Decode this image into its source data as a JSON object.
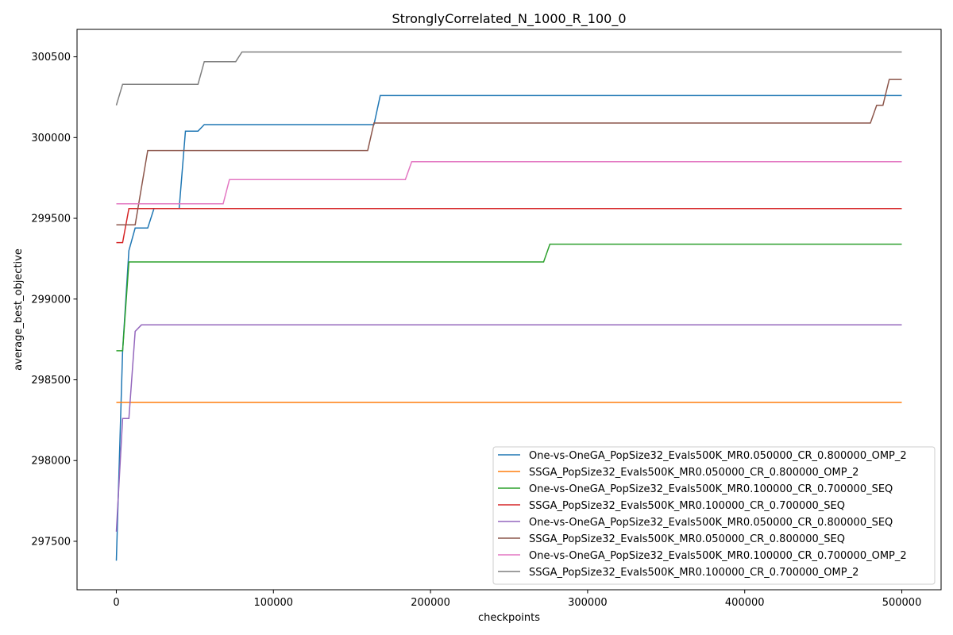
{
  "chart_data": {
    "type": "line",
    "title": "StronglyCorrelated_N_1000_R_100_0",
    "xlabel": "checkpoints",
    "ylabel": "average_best_objective",
    "xlim": [
      -25000,
      525000
    ],
    "ylim": [
      297200,
      300670
    ],
    "xticks": [
      0,
      100000,
      200000,
      300000,
      400000,
      500000
    ],
    "yticks": [
      297500,
      298000,
      298500,
      299000,
      299500,
      300000,
      300500
    ],
    "grid": false,
    "legend_position": "lower-right",
    "series": [
      {
        "name": "One-vs-OneGA_PopSize32_Evals500K_MR0.050000_CR_0.800000_OMP_2",
        "color": "#1f77b4",
        "points": [
          [
            0,
            297380
          ],
          [
            4000,
            298680
          ],
          [
            8000,
            299300
          ],
          [
            12000,
            299440
          ],
          [
            20000,
            299440
          ],
          [
            24000,
            299560
          ],
          [
            40000,
            299560
          ],
          [
            44000,
            300040
          ],
          [
            52000,
            300040
          ],
          [
            56000,
            300080
          ],
          [
            164000,
            300080
          ],
          [
            168000,
            300260
          ],
          [
            500000,
            300260
          ]
        ]
      },
      {
        "name": "SSGA_PopSize32_Evals500K_MR0.050000_CR_0.800000_OMP_2",
        "color": "#ff7f0e",
        "points": [
          [
            0,
            298360
          ],
          [
            500000,
            298360
          ]
        ]
      },
      {
        "name": "One-vs-OneGA_PopSize32_Evals500K_MR0.100000_CR_0.700000_SEQ",
        "color": "#2ca02c",
        "points": [
          [
            0,
            298680
          ],
          [
            4000,
            298680
          ],
          [
            8000,
            299230
          ],
          [
            272000,
            299230
          ],
          [
            276000,
            299340
          ],
          [
            500000,
            299340
          ]
        ]
      },
      {
        "name": "SSGA_PopSize32_Evals500K_MR0.100000_CR_0.700000_SEQ",
        "color": "#d62728",
        "points": [
          [
            0,
            299350
          ],
          [
            4000,
            299350
          ],
          [
            8000,
            299560
          ],
          [
            500000,
            299560
          ]
        ]
      },
      {
        "name": "One-vs-OneGA_PopSize32_Evals500K_MR0.050000_CR_0.800000_SEQ",
        "color": "#9467bd",
        "points": [
          [
            0,
            297560
          ],
          [
            4000,
            298260
          ],
          [
            8000,
            298260
          ],
          [
            12000,
            298800
          ],
          [
            16000,
            298840
          ],
          [
            500000,
            298840
          ]
        ]
      },
      {
        "name": "SSGA_PopSize32_Evals500K_MR0.050000_CR_0.800000_SEQ",
        "color": "#8c564b",
        "points": [
          [
            0,
            299460
          ],
          [
            12000,
            299460
          ],
          [
            20000,
            299920
          ],
          [
            160000,
            299920
          ],
          [
            164000,
            300090
          ],
          [
            480000,
            300090
          ],
          [
            484000,
            300200
          ],
          [
            488000,
            300200
          ],
          [
            492000,
            300360
          ],
          [
            500000,
            300360
          ]
        ]
      },
      {
        "name": "One-vs-OneGA_PopSize32_Evals500K_MR0.100000_CR_0.700000_OMP_2",
        "color": "#e377c2",
        "points": [
          [
            0,
            299590
          ],
          [
            68000,
            299590
          ],
          [
            72000,
            299740
          ],
          [
            184000,
            299740
          ],
          [
            188000,
            299850
          ],
          [
            500000,
            299850
          ]
        ]
      },
      {
        "name": "SSGA_PopSize32_Evals500K_MR0.100000_CR_0.700000_OMP_2",
        "color": "#7f7f7f",
        "points": [
          [
            0,
            300200
          ],
          [
            4000,
            300330
          ],
          [
            52000,
            300330
          ],
          [
            56000,
            300470
          ],
          [
            76000,
            300470
          ],
          [
            80000,
            300530
          ],
          [
            500000,
            300530
          ]
        ]
      }
    ]
  }
}
